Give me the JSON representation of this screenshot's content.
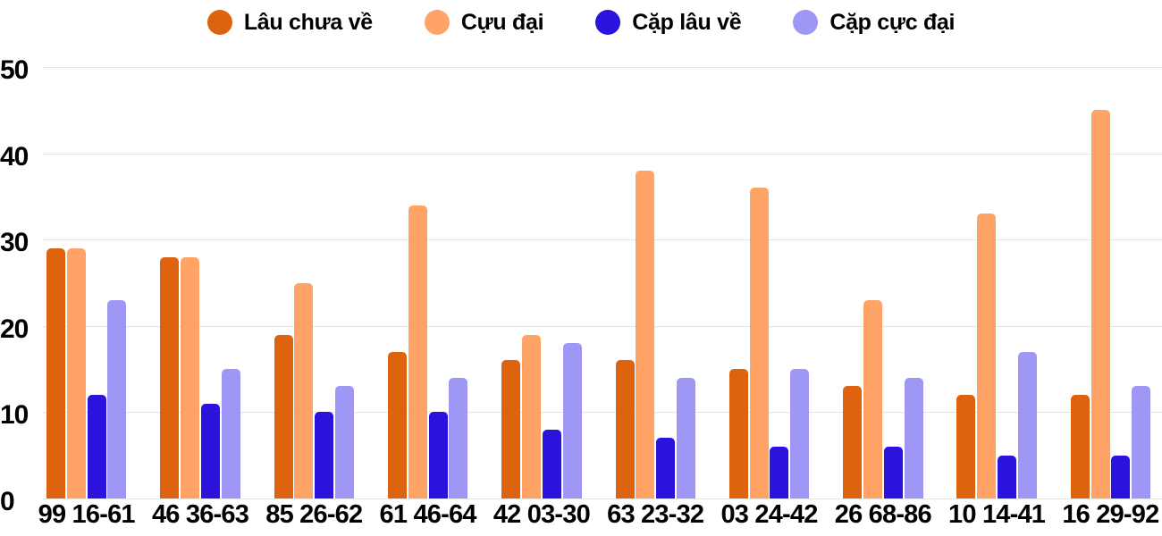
{
  "chart_data": {
    "type": "bar",
    "title": "",
    "xlabel": "",
    "ylabel": "",
    "categories": [
      "99 16-61",
      "46 36-63",
      "85 26-62",
      "61 46-64",
      "42 03-30",
      "63 23-32",
      "03 24-42",
      "26 68-86",
      "10 14-41",
      "16 29-92"
    ],
    "series": [
      {
        "name": "Lâu chưa về",
        "color": "#DE630F",
        "values": [
          29,
          28,
          19,
          17,
          16,
          16,
          15,
          13,
          12,
          12
        ]
      },
      {
        "name": "Cựu đại",
        "color": "#FFA367",
        "values": [
          29,
          28,
          25,
          34,
          19,
          38,
          36,
          23,
          33,
          45
        ]
      },
      {
        "name": "Cặp lâu về",
        "color": "#2B12DC",
        "values": [
          12,
          11,
          10,
          10,
          8,
          7,
          6,
          6,
          5,
          5
        ]
      },
      {
        "name": "Cặp cực đại",
        "color": "#9E97F6",
        "values": [
          23,
          15,
          13,
          14,
          18,
          14,
          15,
          14,
          17,
          13
        ]
      }
    ],
    "ylim": [
      0,
      50
    ],
    "yticks": [
      0,
      10,
      20,
      30,
      40,
      50
    ],
    "grid": true,
    "legend_position": "top"
  },
  "colors": {
    "background": "#FFFFFF",
    "gridline": "#E4E4E4",
    "axis_text": "#000000"
  }
}
